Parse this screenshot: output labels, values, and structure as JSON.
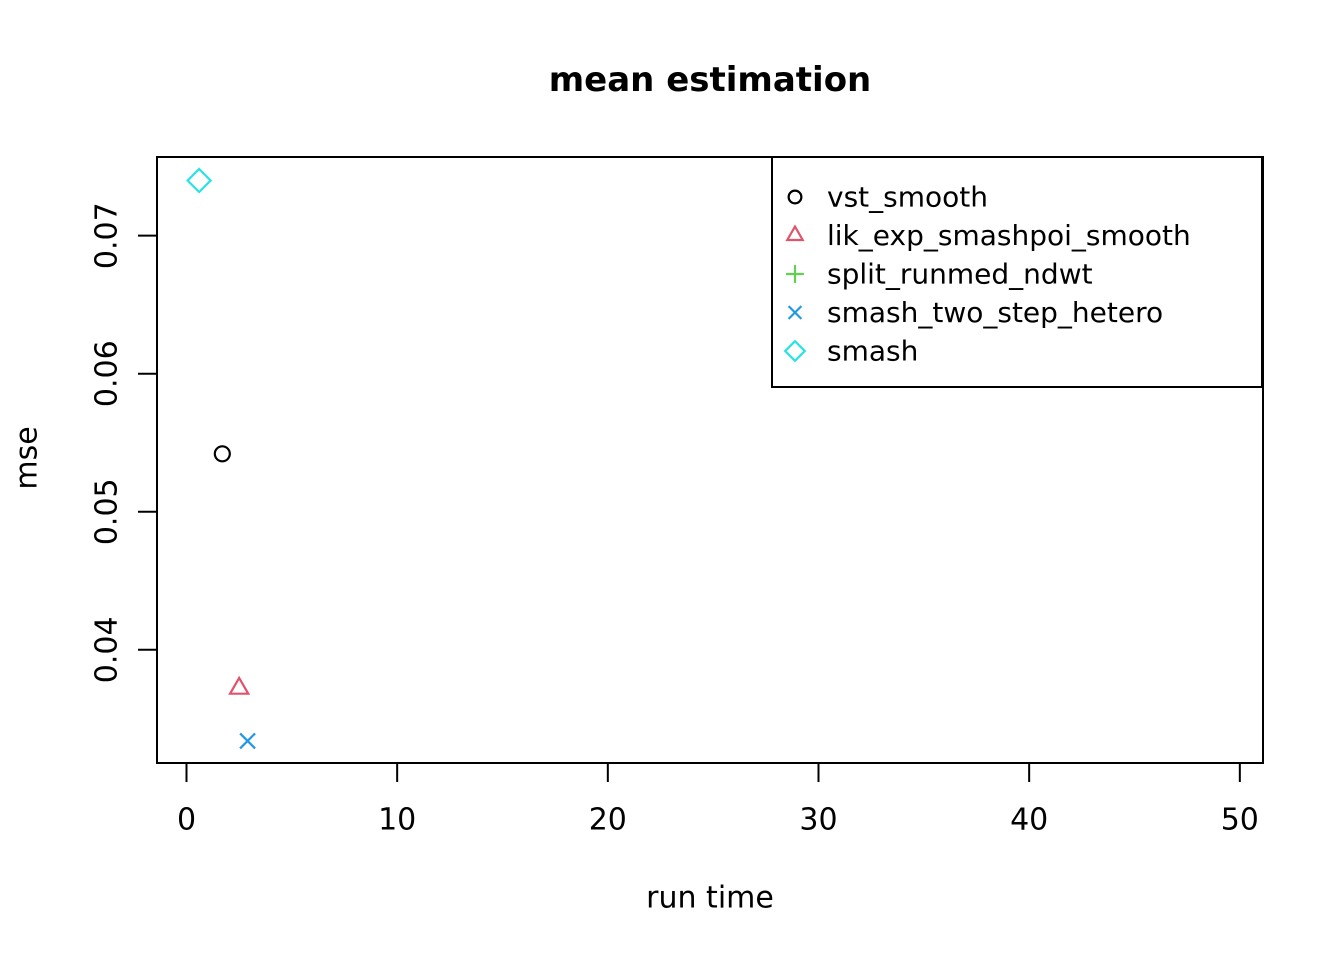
{
  "chart_data": {
    "type": "scatter",
    "title": "mean estimation",
    "xlabel": "run time",
    "ylabel": "mse",
    "x_ticks": [
      0,
      10,
      20,
      30,
      40,
      50
    ],
    "y_ticks": [
      0.04,
      0.05,
      0.06,
      0.07
    ],
    "xlim": [
      -1.4,
      51.1
    ],
    "ylim": [
      0.0318,
      0.0757
    ],
    "grid": false,
    "legend_position": "top-right",
    "axis_color": "#000000",
    "series": [
      {
        "name": "vst_smooth",
        "marker": "circle",
        "color": "#000000",
        "points": [
          {
            "x": 1.7,
            "y": 0.0542
          }
        ]
      },
      {
        "name": "lik_exp_smashpoi_smooth",
        "marker": "triangle",
        "color": "#DF536B",
        "points": [
          {
            "x": 2.5,
            "y": 0.0372
          }
        ]
      },
      {
        "name": "split_runmed_ndwt",
        "marker": "plus",
        "color": "#61D04F",
        "points": []
      },
      {
        "name": "smash_two_step_hetero",
        "marker": "x",
        "color": "#2297E6",
        "points": [
          {
            "x": 2.9,
            "y": 0.0334
          }
        ]
      },
      {
        "name": "smash",
        "marker": "diamond",
        "color": "#28E2E5",
        "points": [
          {
            "x": 0.6,
            "y": 0.074
          }
        ]
      }
    ]
  }
}
